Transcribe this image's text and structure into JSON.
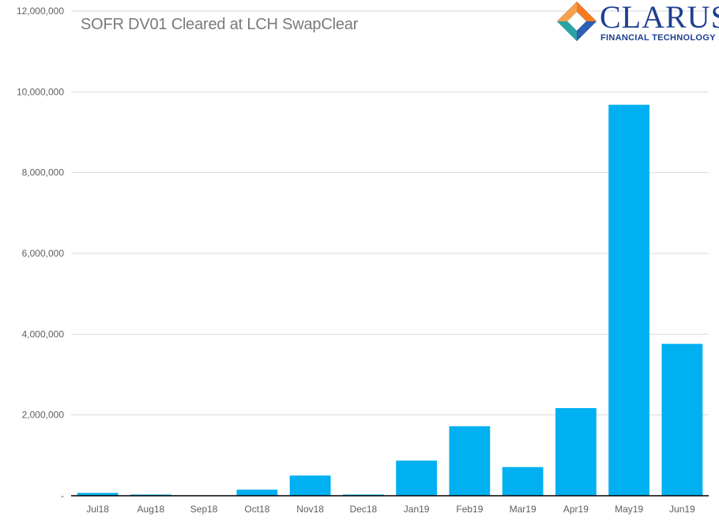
{
  "logo": {
    "name": "CLARUS",
    "subtitle": "FINANCIAL TECHNOLOGY"
  },
  "chart_data": {
    "type": "bar",
    "title": "SOFR DV01 Cleared at LCH SwapClear",
    "xlabel": "",
    "ylabel": "",
    "categories": [
      "Jul18",
      "Aug18",
      "Sep18",
      "Oct18",
      "Nov18",
      "Dec18",
      "Jan19",
      "Feb19",
      "Mar19",
      "Apr19",
      "May19",
      "Jun19"
    ],
    "values": [
      70000,
      30000,
      0,
      150000,
      500000,
      30000,
      870000,
      1720000,
      710000,
      2170000,
      9680000,
      3760000
    ],
    "ylim": [
      0,
      12000000
    ],
    "yticks": [
      0,
      2000000,
      4000000,
      6000000,
      8000000,
      10000000,
      12000000
    ],
    "ytick_labels": [
      "-",
      "2,000,000",
      "4,000,000",
      "6,000,000",
      "8,000,000",
      "10,000,000",
      "12,000,000"
    ],
    "grid": true,
    "legend": "none",
    "bar_color": "#00b0f0",
    "grid_color": "#d9d9d9"
  }
}
